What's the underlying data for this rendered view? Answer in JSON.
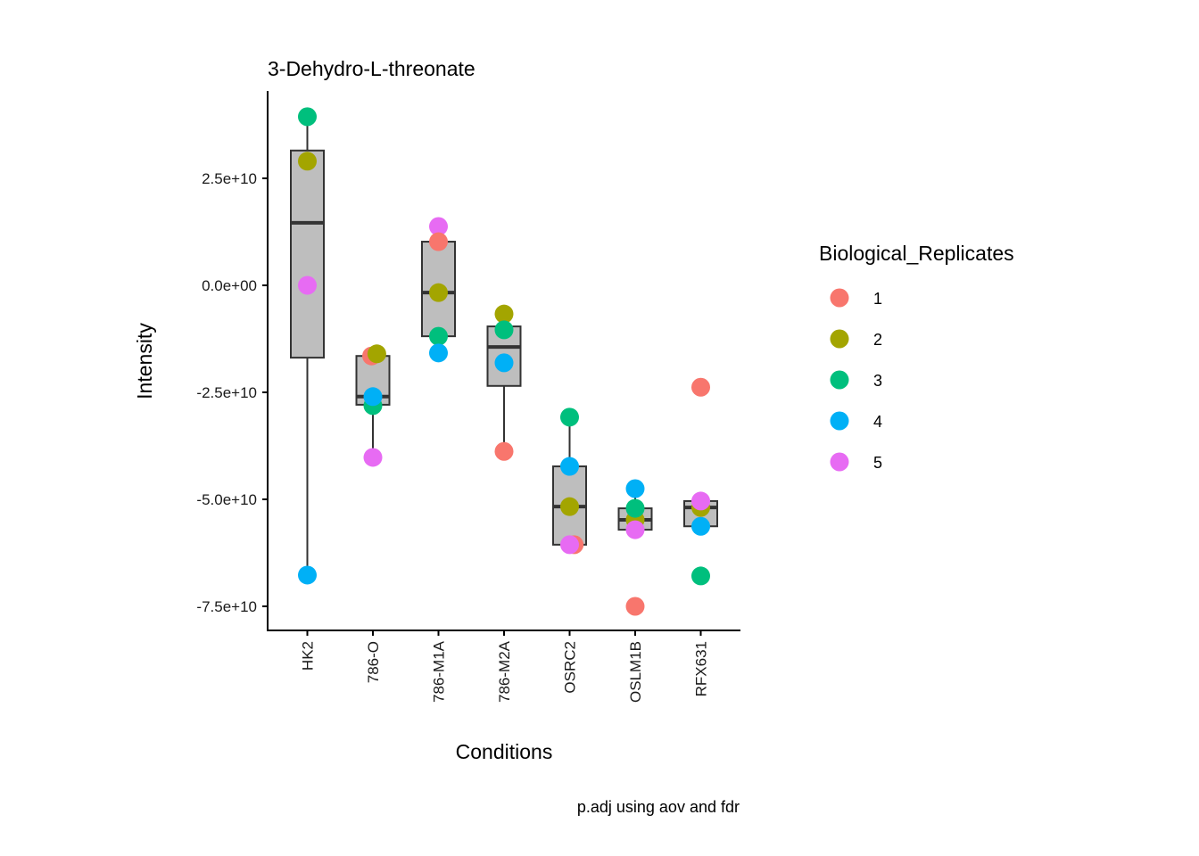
{
  "chart_data": {
    "type": "boxplot-with-points",
    "title": "3-Dehydro-L-threonate",
    "xlabel": "Conditions",
    "ylabel": "Intensity",
    "caption": "p.adj using  aov and fdr",
    "categories": [
      "HK2",
      "786-O",
      "786-M1A",
      "786-M2A",
      "OSRC2",
      "OSLM1B",
      "RFX631"
    ],
    "ylim": [
      -81000000000.0,
      46000000000.0
    ],
    "yticks": [
      25000000000.0,
      0,
      -25000000000.0,
      -50000000000.0,
      -75000000000.0
    ],
    "ytick_labels": [
      "2.5e+10",
      "0.0e+00",
      "-2.5e+10",
      "-5.0e+10",
      "-7.5e+10"
    ],
    "grid": false,
    "legend": {
      "title": "Biological_Replicates",
      "placement": "right",
      "entries": [
        {
          "label": "1",
          "color": "#F8766D"
        },
        {
          "label": "2",
          "color": "#A3A500"
        },
        {
          "label": "3",
          "color": "#00BF7D"
        },
        {
          "label": "4",
          "color": "#00B0F6"
        },
        {
          "label": "5",
          "color": "#E76BF3"
        }
      ]
    },
    "box_fill": "#BEBEBE",
    "box_stroke": "#333333",
    "boxes": [
      {
        "category": "HK2",
        "lower_whisker": -67700000000.0,
        "q1": -16900000000.0,
        "median": 14600000000.0,
        "q3": 31500000000.0,
        "upper_whisker": 39400000000.0
      },
      {
        "category": "786-O",
        "lower_whisker": -40200000000.0,
        "q1": -27900000000.0,
        "median": -26000000000.0,
        "q3": -16500000000.0,
        "upper_whisker": -16000000000.0
      },
      {
        "category": "786-M1A",
        "lower_whisker": -15800000000.0,
        "q1": -11900000000.0,
        "median": -1700000000.0,
        "q3": 10200000000.0,
        "upper_whisker": 13750000000.0
      },
      {
        "category": "786-M2A",
        "lower_whisker": -38800000000.0,
        "q1": -23500000000.0,
        "median": -14400000000.0,
        "q3": -9600000000.0,
        "upper_whisker": -6700000000.0
      },
      {
        "category": "OSRC2",
        "lower_whisker": -60600000000.0,
        "q1": -60600000000.0,
        "median": -51700000000.0,
        "q3": -42300000000.0,
        "upper_whisker": -30800000000.0
      },
      {
        "category": "OSLM1B",
        "lower_whisker": -57100000000.0,
        "q1": -57100000000.0,
        "median": -54800000000.0,
        "q3": -52100000000.0,
        "upper_whisker": -47500000000.0
      },
      {
        "category": "RFX631",
        "lower_whisker": -56300000000.0,
        "q1": -56300000000.0,
        "median": -51900000000.0,
        "q3": -50400000000.0,
        "upper_whisker": -50400000000.0
      }
    ],
    "points": [
      {
        "category": "HK2",
        "replicate": "3",
        "value": 39400000000.0,
        "jitter": 0
      },
      {
        "category": "HK2",
        "replicate": "2",
        "value": 29000000000.0,
        "jitter": 0
      },
      {
        "category": "HK2",
        "replicate": "5",
        "value": 0.0,
        "jitter": 0
      },
      {
        "category": "HK2",
        "replicate": "4",
        "value": -67700000000.0,
        "jitter": 0
      },
      {
        "category": "786-O",
        "replicate": "1",
        "value": -16500000000.0,
        "jitter": -0.02
      },
      {
        "category": "786-O",
        "replicate": "2",
        "value": -16000000000.0,
        "jitter": 0.06
      },
      {
        "category": "786-O",
        "replicate": "3",
        "value": -28100000000.0,
        "jitter": 0
      },
      {
        "category": "786-O",
        "replicate": "4",
        "value": -26000000000.0,
        "jitter": 0
      },
      {
        "category": "786-O",
        "replicate": "5",
        "value": -40200000000.0,
        "jitter": 0
      },
      {
        "category": "786-M1A",
        "replicate": "5",
        "value": 13750000000.0,
        "jitter": 0
      },
      {
        "category": "786-M1A",
        "replicate": "1",
        "value": 10200000000.0,
        "jitter": 0
      },
      {
        "category": "786-M1A",
        "replicate": "2",
        "value": -1700000000.0,
        "jitter": 0
      },
      {
        "category": "786-M1A",
        "replicate": "3",
        "value": -11900000000.0,
        "jitter": 0
      },
      {
        "category": "786-M1A",
        "replicate": "4",
        "value": -15800000000.0,
        "jitter": 0
      },
      {
        "category": "786-M2A",
        "replicate": "2",
        "value": -6700000000.0,
        "jitter": 0
      },
      {
        "category": "786-M2A",
        "replicate": "3",
        "value": -10400000000.0,
        "jitter": 0
      },
      {
        "category": "786-M2A",
        "replicate": "4",
        "value": -18100000000.0,
        "jitter": 0
      },
      {
        "category": "786-M2A",
        "replicate": "1",
        "value": -38800000000.0,
        "jitter": 0
      },
      {
        "category": "OSRC2",
        "replicate": "3",
        "value": -30800000000.0,
        "jitter": 0
      },
      {
        "category": "OSRC2",
        "replicate": "4",
        "value": -42300000000.0,
        "jitter": 0
      },
      {
        "category": "OSRC2",
        "replicate": "2",
        "value": -51700000000.0,
        "jitter": 0
      },
      {
        "category": "OSRC2",
        "replicate": "1",
        "value": -60600000000.0,
        "jitter": 0.07
      },
      {
        "category": "OSRC2",
        "replicate": "5",
        "value": -60600000000.0,
        "jitter": 0
      },
      {
        "category": "OSLM1B",
        "replicate": "4",
        "value": -47500000000.0,
        "jitter": 0
      },
      {
        "category": "OSLM1B",
        "replicate": "2",
        "value": -54800000000.0,
        "jitter": 0
      },
      {
        "category": "OSLM1B",
        "replicate": "3",
        "value": -52100000000.0,
        "jitter": 0
      },
      {
        "category": "OSLM1B",
        "replicate": "5",
        "value": -57100000000.0,
        "jitter": 0
      },
      {
        "category": "OSLM1B",
        "replicate": "1",
        "value": -75000000000.0,
        "jitter": 0
      },
      {
        "category": "RFX631",
        "replicate": "1",
        "value": -23800000000.0,
        "jitter": 0
      },
      {
        "category": "RFX631",
        "replicate": "2",
        "value": -51900000000.0,
        "jitter": 0
      },
      {
        "category": "RFX631",
        "replicate": "5",
        "value": -50400000000.0,
        "jitter": 0
      },
      {
        "category": "RFX631",
        "replicate": "4",
        "value": -56300000000.0,
        "jitter": 0
      },
      {
        "category": "RFX631",
        "replicate": "3",
        "value": -67900000000.0,
        "jitter": 0
      }
    ]
  }
}
